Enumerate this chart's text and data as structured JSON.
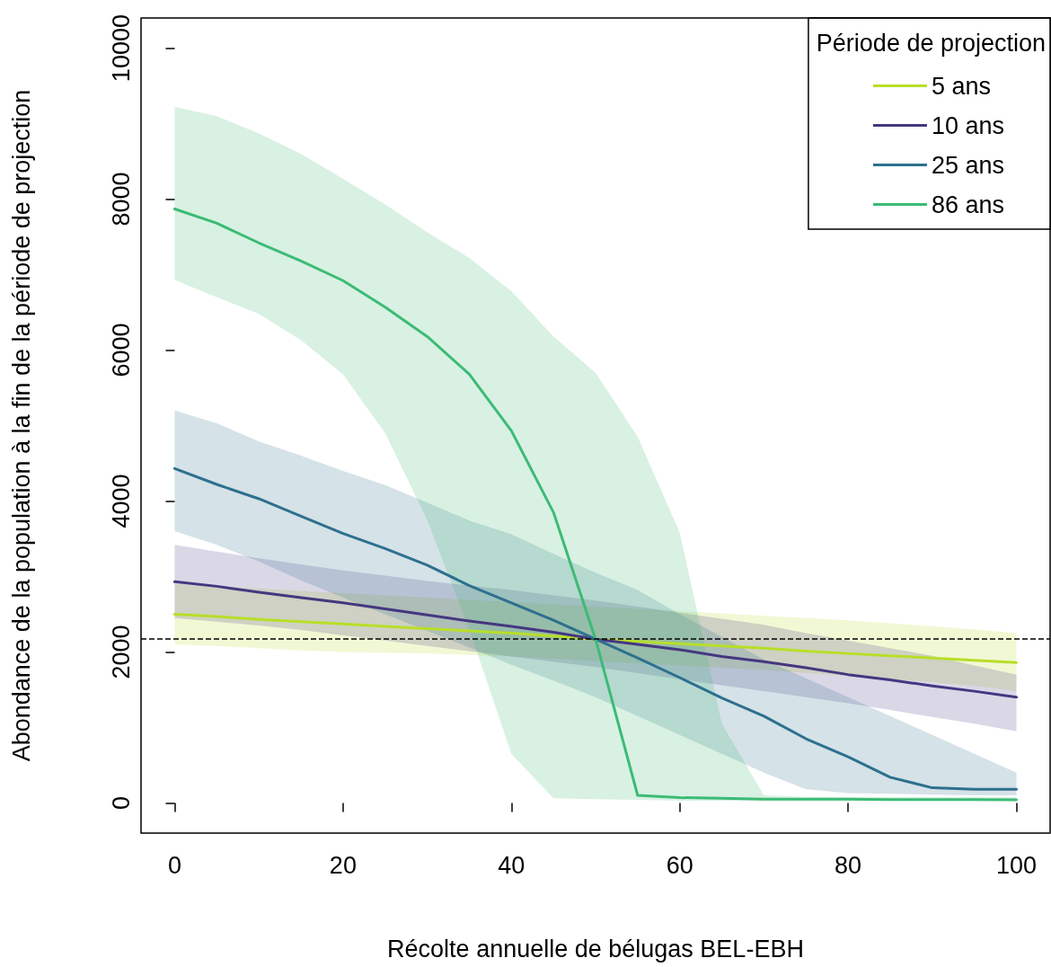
{
  "chart_data": {
    "type": "line",
    "xlabel": "Récolte annuelle de bélugas BEL-EBH",
    "ylabel": "Abondance de la population à la fin de la période de projection",
    "legend_title": "Période de projection",
    "x": [
      0,
      5,
      10,
      15,
      20,
      25,
      30,
      35,
      40,
      45,
      50,
      55,
      60,
      65,
      70,
      75,
      80,
      85,
      90,
      95,
      100
    ],
    "series": [
      {
        "name": "5 ans",
        "color": "#b8de29",
        "values": [
          2500,
          2470,
          2430,
          2400,
          2370,
          2340,
          2310,
          2280,
          2250,
          2210,
          2170,
          2140,
          2110,
          2080,
          2050,
          2010,
          1980,
          1950,
          1920,
          1890,
          1860
        ],
        "lower": [
          2100,
          2080,
          2050,
          2020,
          2000,
          1990,
          1980,
          1960,
          1940,
          1910,
          1880,
          1850,
          1820,
          1790,
          1760,
          1720,
          1680,
          1640,
          1600,
          1550,
          1480
        ],
        "upper": [
          2900,
          2870,
          2840,
          2810,
          2780,
          2750,
          2720,
          2690,
          2660,
          2630,
          2600,
          2570,
          2540,
          2510,
          2480,
          2450,
          2420,
          2380,
          2340,
          2300,
          2250
        ]
      },
      {
        "name": "10 ans",
        "color": "#453781",
        "values": [
          2930,
          2870,
          2790,
          2720,
          2650,
          2570,
          2490,
          2410,
          2340,
          2260,
          2170,
          2100,
          2030,
          1940,
          1870,
          1790,
          1700,
          1630,
          1550,
          1480,
          1400
        ],
        "lower": [
          2450,
          2400,
          2350,
          2290,
          2220,
          2150,
          2080,
          2010,
          1940,
          1870,
          1800,
          1720,
          1640,
          1560,
          1480,
          1400,
          1320,
          1230,
          1140,
          1050,
          950
        ],
        "upper": [
          3420,
          3330,
          3240,
          3160,
          3080,
          3010,
          2940,
          2880,
          2820,
          2750,
          2680,
          2600,
          2520,
          2440,
          2360,
          2250,
          2150,
          2050,
          1950,
          1820,
          1700
        ]
      },
      {
        "name": "25 ans",
        "color": "#2d708e",
        "values": [
          4430,
          4220,
          4030,
          3800,
          3570,
          3370,
          3150,
          2880,
          2650,
          2420,
          2170,
          1920,
          1660,
          1390,
          1150,
          850,
          610,
          340,
          200,
          180,
          180
        ],
        "lower": [
          3600,
          3420,
          3200,
          2950,
          2720,
          2500,
          2280,
          2060,
          1830,
          1620,
          1400,
          1150,
          900,
          650,
          400,
          180,
          130,
          120,
          110,
          100,
          100
        ],
        "upper": [
          5200,
          5030,
          4790,
          4600,
          4400,
          4210,
          3980,
          3740,
          3560,
          3300,
          3050,
          2820,
          2500,
          2200,
          1900,
          1650,
          1400,
          1150,
          900,
          650,
          400
        ]
      },
      {
        "name": "86 ans",
        "color": "#3cbb75",
        "values": [
          7870,
          7680,
          7420,
          7180,
          6920,
          6570,
          6180,
          5680,
          4930,
          3850,
          2170,
          100,
          70,
          60,
          50,
          50,
          50,
          45,
          45,
          45,
          40
        ],
        "lower": [
          6930,
          6700,
          6480,
          6130,
          5680,
          4900,
          3750,
          2300,
          650,
          60,
          50,
          40,
          30,
          30,
          30,
          30,
          30,
          30,
          30,
          30,
          30
        ],
        "upper": [
          9220,
          9100,
          8870,
          8600,
          8270,
          7930,
          7560,
          7220,
          6780,
          6180,
          5700,
          4850,
          3580,
          1050,
          100,
          80,
          80,
          80,
          80,
          80,
          80
        ]
      }
    ],
    "xlim": [
      -4,
      104
    ],
    "xticks": [
      0,
      20,
      40,
      60,
      80,
      100
    ],
    "ylim": [
      -400,
      10400
    ],
    "yticks": [
      0,
      2000,
      4000,
      6000,
      8000,
      10000
    ],
    "ref_lines": [
      {
        "axis": "y",
        "value": 2170,
        "color": "#000000",
        "line_style": "dashed"
      }
    ],
    "grid": false,
    "legend": "top right",
    "marker": "none",
    "line_style": "solid"
  }
}
